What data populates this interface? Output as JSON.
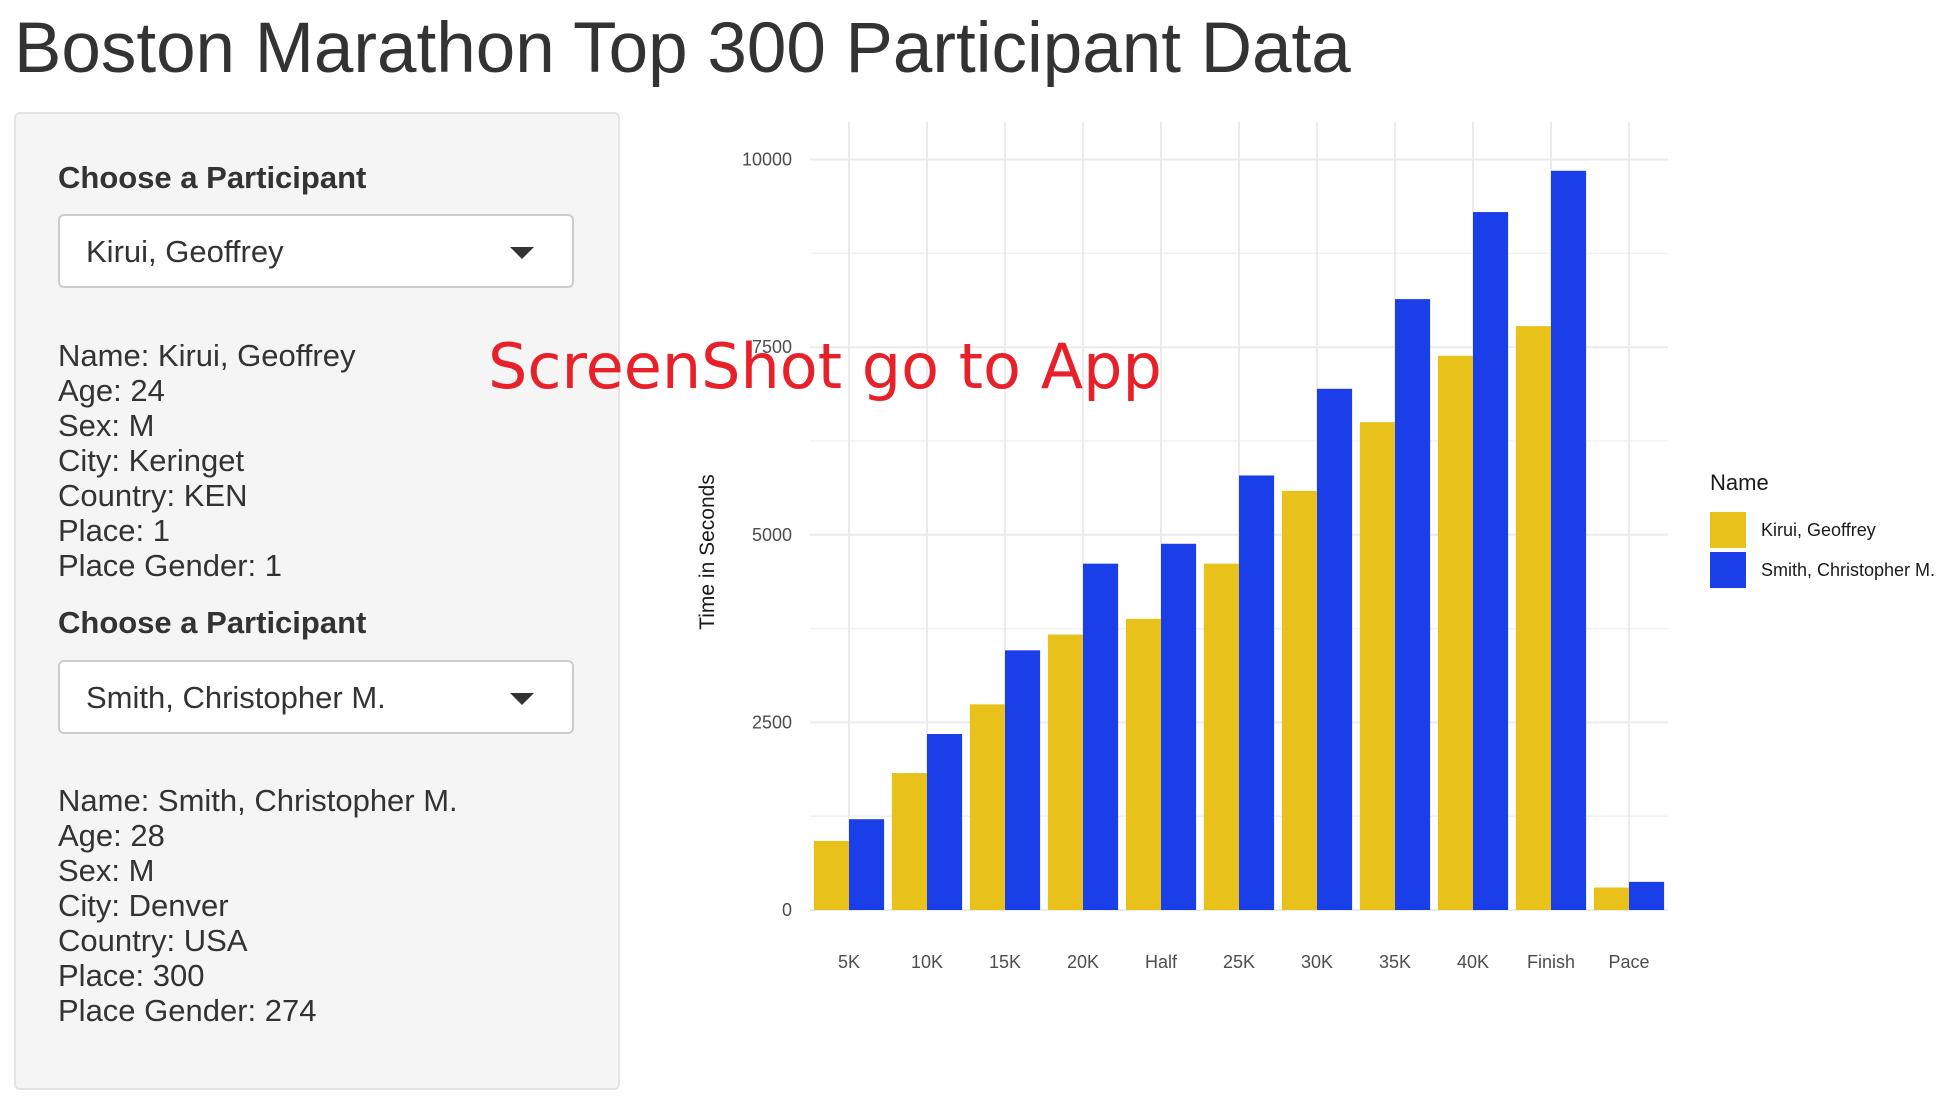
{
  "page": {
    "title": "Boston Marathon Top 300 Participant Data",
    "overlay": "ScreenShot go to App"
  },
  "participants": [
    {
      "control_label": "Choose a Participant",
      "selected": "Kirui, Geoffrey",
      "info": [
        "Name: Kirui, Geoffrey",
        "Age: 24",
        "Sex: M",
        "City: Keringet",
        "Country: KEN",
        "Place: 1",
        "Place Gender: 1"
      ]
    },
    {
      "control_label": "Choose a Participant",
      "selected": "Smith, Christopher M.",
      "info": [
        "Name: Smith, Christopher M.",
        "Age: 28",
        "Sex: M",
        "City: Denver",
        "Country: USA",
        "Place: 300",
        "Place Gender: 274"
      ]
    }
  ],
  "icons": {
    "dropdown": "caret-down-icon"
  },
  "chart_data": {
    "type": "bar",
    "ylabel": "Time in Seconds",
    "xlabel": "",
    "categories": [
      "5K",
      "10K",
      "15K",
      "20K",
      "Half",
      "25K",
      "30K",
      "35K",
      "40K",
      "Finish",
      "Pace"
    ],
    "series": [
      {
        "name": "Kirui, Geoffrey",
        "color": "#e8c21b",
        "values": [
          920,
          1825,
          2740,
          3670,
          3880,
          4615,
          5585,
          6500,
          7385,
          7780,
          300
        ]
      },
      {
        "name": "Smith, Christopher M.",
        "color": "#1a3ee8",
        "values": [
          1210,
          2345,
          3460,
          4615,
          4880,
          5790,
          6945,
          8140,
          9300,
          9850,
          375
        ]
      }
    ],
    "ylim": [
      0,
      10500
    ],
    "yticks": [
      0,
      2500,
      5000,
      7500,
      10000
    ],
    "ytick_labels": [
      "0",
      "2500",
      "5000",
      "7500",
      "10000"
    ],
    "grid": true,
    "legend_title": "Name",
    "legend_position": "right"
  }
}
